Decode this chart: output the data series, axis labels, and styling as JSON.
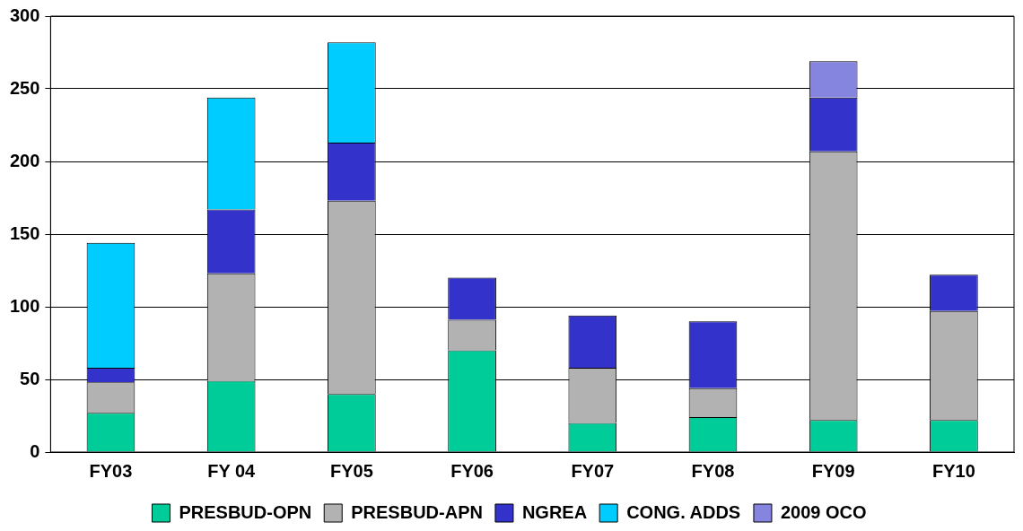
{
  "chart_data": {
    "type": "bar",
    "stacked": true,
    "categories": [
      "FY03",
      "FY 04",
      "FY05",
      "FY06",
      "FY07",
      "FY08",
      "FY09",
      "FY10"
    ],
    "ylim": [
      0,
      300
    ],
    "yticks": [
      0,
      50,
      100,
      150,
      200,
      250,
      300
    ],
    "grid": "y",
    "legend": "bottom",
    "series": [
      {
        "name": "PRESBUD-OPN",
        "color": "#00cc99",
        "values": [
          27,
          49,
          40,
          70,
          20,
          24,
          22,
          22
        ]
      },
      {
        "name": "PRESBUD-APN",
        "color": "#b2b2b2",
        "values": [
          21,
          74,
          133,
          21,
          38,
          20,
          185,
          75
        ]
      },
      {
        "name": "NGREA",
        "color": "#3333cc",
        "values": [
          10,
          44,
          40,
          29,
          36,
          46,
          37,
          25
        ]
      },
      {
        "name": "CONG. ADDS",
        "color": "#00ccff",
        "values": [
          86,
          77,
          69,
          null,
          null,
          null,
          null,
          null
        ]
      },
      {
        "name": "2009 OCO",
        "color": "#8585e0",
        "values": [
          null,
          null,
          null,
          null,
          null,
          null,
          25,
          null
        ]
      }
    ]
  }
}
